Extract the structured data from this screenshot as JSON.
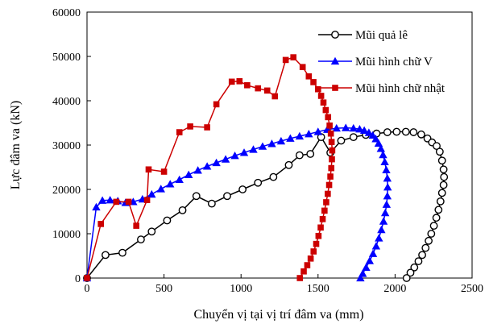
{
  "chart_data": {
    "type": "line",
    "xlabel": "Chuyển vị tại vị trí đâm va (mm)",
    "ylabel": "Lực đâm va (kN)",
    "xlim": [
      0,
      2500
    ],
    "ylim": [
      0,
      60000
    ],
    "xticks": [
      0,
      500,
      1000,
      1500,
      2000,
      2500
    ],
    "yticks": [
      0,
      10000,
      20000,
      30000,
      40000,
      50000,
      60000
    ],
    "grid": false,
    "legend_position": "top-right",
    "series": [
      {
        "name": "Mũi quả lê",
        "color": "#000000",
        "marker": "circle-open",
        "points": [
          [
            0,
            0
          ],
          [
            120,
            5200
          ],
          [
            230,
            5700
          ],
          [
            350,
            8700
          ],
          [
            420,
            10500
          ],
          [
            520,
            13000
          ],
          [
            620,
            15300
          ],
          [
            710,
            18500
          ],
          [
            810,
            16800
          ],
          [
            910,
            18500
          ],
          [
            1010,
            20000
          ],
          [
            1110,
            21500
          ],
          [
            1210,
            22800
          ],
          [
            1310,
            25500
          ],
          [
            1380,
            27700
          ],
          [
            1450,
            28000
          ],
          [
            1520,
            31800
          ],
          [
            1580,
            28300
          ],
          [
            1650,
            31000
          ],
          [
            1730,
            31800
          ],
          [
            1810,
            32300
          ],
          [
            1880,
            32600
          ],
          [
            1950,
            32900
          ],
          [
            2010,
            33000
          ],
          [
            2070,
            33000
          ],
          [
            2120,
            32900
          ],
          [
            2170,
            32400
          ],
          [
            2210,
            31500
          ],
          [
            2240,
            30600
          ],
          [
            2270,
            29800
          ],
          [
            2290,
            28500
          ],
          [
            2305,
            26500
          ],
          [
            2315,
            24500
          ],
          [
            2318,
            22800
          ],
          [
            2315,
            21000
          ],
          [
            2305,
            19200
          ],
          [
            2295,
            17300
          ],
          [
            2282,
            15400
          ],
          [
            2268,
            13600
          ],
          [
            2252,
            11800
          ],
          [
            2235,
            10000
          ],
          [
            2218,
            8400
          ],
          [
            2198,
            6800
          ],
          [
            2176,
            5200
          ],
          [
            2152,
            3800
          ],
          [
            2125,
            2400
          ],
          [
            2100,
            1200
          ],
          [
            2075,
            0
          ]
        ]
      },
      {
        "name": "Mũi hình chữ V",
        "color": "#0000ff",
        "marker": "triangle-filled",
        "points": [
          [
            0,
            0
          ],
          [
            60,
            16000
          ],
          [
            100,
            17500
          ],
          [
            150,
            17600
          ],
          [
            200,
            17400
          ],
          [
            250,
            17000
          ],
          [
            300,
            17200
          ],
          [
            360,
            17800
          ],
          [
            420,
            18900
          ],
          [
            480,
            20100
          ],
          [
            540,
            21200
          ],
          [
            600,
            22200
          ],
          [
            660,
            23300
          ],
          [
            720,
            24300
          ],
          [
            780,
            25200
          ],
          [
            840,
            26000
          ],
          [
            900,
            26800
          ],
          [
            960,
            27600
          ],
          [
            1020,
            28300
          ],
          [
            1080,
            29000
          ],
          [
            1140,
            29700
          ],
          [
            1200,
            30300
          ],
          [
            1260,
            30900
          ],
          [
            1320,
            31500
          ],
          [
            1380,
            32000
          ],
          [
            1440,
            32500
          ],
          [
            1500,
            33000
          ],
          [
            1560,
            33500
          ],
          [
            1620,
            33800
          ],
          [
            1680,
            33900
          ],
          [
            1730,
            33800
          ],
          [
            1770,
            33600
          ],
          [
            1800,
            33300
          ],
          [
            1830,
            32800
          ],
          [
            1855,
            32200
          ],
          [
            1875,
            31400
          ],
          [
            1893,
            30400
          ],
          [
            1908,
            29200
          ],
          [
            1922,
            27800
          ],
          [
            1933,
            26200
          ],
          [
            1943,
            24400
          ],
          [
            1950,
            22500
          ],
          [
            1952,
            20500
          ],
          [
            1950,
            18500
          ],
          [
            1945,
            16600
          ],
          [
            1936,
            14700
          ],
          [
            1925,
            12800
          ],
          [
            1911,
            10900
          ],
          [
            1895,
            9000
          ],
          [
            1877,
            7200
          ],
          [
            1857,
            5500
          ],
          [
            1835,
            3900
          ],
          [
            1812,
            2400
          ],
          [
            1790,
            1000
          ],
          [
            1775,
            0
          ]
        ]
      },
      {
        "name": "Mũi hình chữ nhật",
        "color": "#cc0000",
        "marker": "square-filled",
        "points": [
          [
            0,
            0
          ],
          [
            90,
            12200
          ],
          [
            190,
            17200
          ],
          [
            270,
            17200
          ],
          [
            320,
            11800
          ],
          [
            390,
            17600
          ],
          [
            400,
            24500
          ],
          [
            500,
            24000
          ],
          [
            600,
            32900
          ],
          [
            670,
            34200
          ],
          [
            780,
            34000
          ],
          [
            840,
            39200
          ],
          [
            940,
            44300
          ],
          [
            990,
            44400
          ],
          [
            1040,
            43500
          ],
          [
            1110,
            42800
          ],
          [
            1170,
            42300
          ],
          [
            1220,
            41000
          ],
          [
            1290,
            49200
          ],
          [
            1340,
            49800
          ],
          [
            1400,
            47600
          ],
          [
            1440,
            45500
          ],
          [
            1470,
            44200
          ],
          [
            1500,
            42600
          ],
          [
            1520,
            41100
          ],
          [
            1535,
            39600
          ],
          [
            1550,
            37900
          ],
          [
            1565,
            36300
          ],
          [
            1575,
            34400
          ],
          [
            1583,
            32600
          ],
          [
            1588,
            30700
          ],
          [
            1592,
            28800
          ],
          [
            1590,
            26800
          ],
          [
            1586,
            24800
          ],
          [
            1580,
            22900
          ],
          [
            1572,
            21000
          ],
          [
            1563,
            19000
          ],
          [
            1553,
            17100
          ],
          [
            1542,
            15200
          ],
          [
            1530,
            13300
          ],
          [
            1517,
            11400
          ],
          [
            1503,
            9500
          ],
          [
            1488,
            7700
          ],
          [
            1471,
            6000
          ],
          [
            1452,
            4400
          ],
          [
            1430,
            2900
          ],
          [
            1407,
            1500
          ],
          [
            1382,
            0
          ]
        ]
      }
    ]
  }
}
